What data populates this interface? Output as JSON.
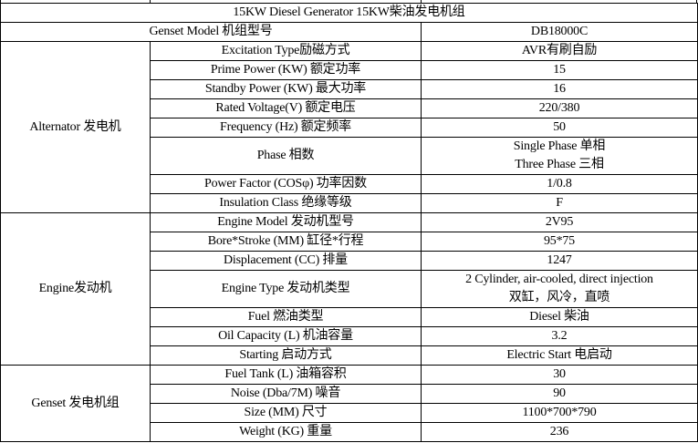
{
  "title": "15KW Diesel  Generator 15KW柴油发电机组",
  "model": {
    "label": "Genset Model 机组型号",
    "value": "DB18000C"
  },
  "groups": [
    {
      "name": "Alternator 发电机",
      "rows": [
        {
          "label": "Excitation Type励磁方式",
          "value": "AVR有刷自励"
        },
        {
          "label": "Prime Power (KW) 额定功率",
          "value": "15"
        },
        {
          "label": "Standby Power (KW) 最大功率",
          "value": "16"
        },
        {
          "label": "Rated Voltage(V) 额定电压",
          "value": "220/380"
        },
        {
          "label": "Frequency (Hz) 额定频率",
          "value": "50"
        },
        {
          "label": "Phase 相数",
          "value": "Single Phase 单相",
          "value2": "Three Phase 三相"
        },
        {
          "label": "Power Factor (COSφ) 功率因数",
          "value": "1/0.8"
        },
        {
          "label": "Insulation Class 绝缘等级",
          "value": "F"
        }
      ]
    },
    {
      "name": "Engine发动机",
      "rows": [
        {
          "label": "Engine Model 发动机型号",
          "value": "2V95"
        },
        {
          "label": "Bore*Stroke (MM) 缸径*行程",
          "value": "95*75"
        },
        {
          "label": "Displacement (CC) 排量",
          "value": "1247"
        },
        {
          "label": "Engine Type 发动机类型",
          "value": "2 Cylinder, air-cooled, direct injection",
          "value2": "双缸，风冷，直喷"
        },
        {
          "label": "Fuel 燃油类型",
          "value": "Diesel 柴油"
        },
        {
          "label": "Oil Capacity (L) 机油容量",
          "value": "3.2"
        },
        {
          "label": "Starting 启动方式",
          "value": "Electric Start 电启动"
        }
      ]
    },
    {
      "name": "Genset 发电机组",
      "rows": [
        {
          "label": "Fuel Tank (L) 油箱容积",
          "value": "30"
        },
        {
          "label": "Noise (Dba/7M) 噪音",
          "value": "90"
        },
        {
          "label": "Size (MM) 尺寸",
          "value": "1100*700*790"
        },
        {
          "label": "Weight (KG) 重量",
          "value": "236"
        }
      ]
    }
  ]
}
